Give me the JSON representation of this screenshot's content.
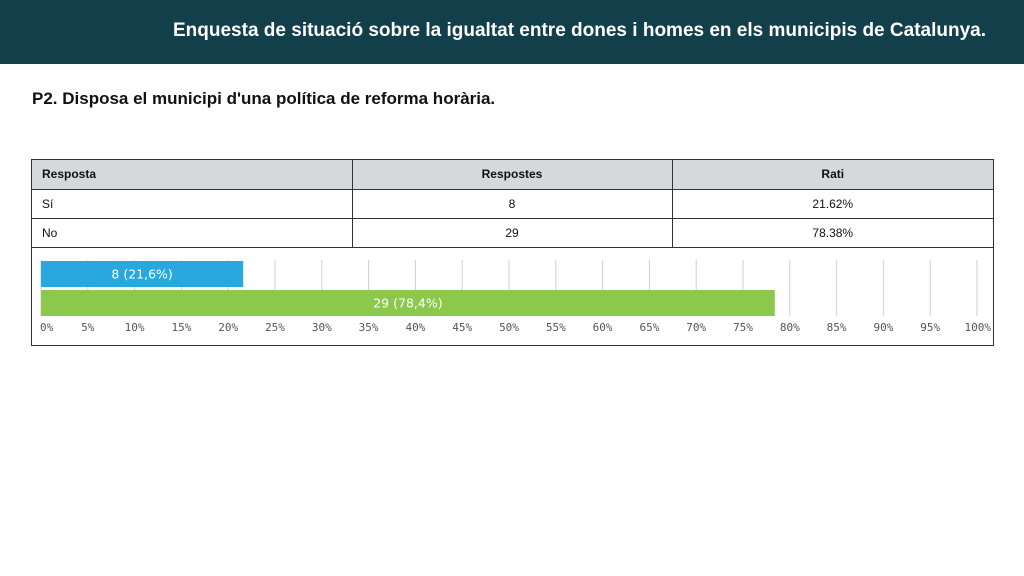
{
  "header": {
    "title": "Enquesta de situació sobre la  igualtat entre dones i homes en els municipis de Catalunya."
  },
  "question": "P2. Disposa el municipi d'una política de reforma horària.",
  "table": {
    "headers": [
      "Resposta",
      "Respostes",
      "Rati"
    ],
    "rows": [
      {
        "answer": "Sí",
        "count": "8",
        "ratio": "21.62%"
      },
      {
        "answer": "No",
        "count": "29",
        "ratio": "78.38%"
      }
    ]
  },
  "colors": {
    "banner": "#123f4a",
    "bar_si": "#29a8e0",
    "bar_no": "#8cc84b"
  },
  "chart_data": {
    "type": "bar",
    "orientation": "horizontal",
    "categories": [
      "Sí",
      "No"
    ],
    "values": [
      21.6,
      78.4
    ],
    "bar_labels": [
      "8 (21,6%)",
      "29 (78,4%)"
    ],
    "xlim": [
      0,
      100
    ],
    "x_ticks": [
      0,
      5,
      10,
      15,
      20,
      25,
      30,
      35,
      40,
      45,
      50,
      55,
      60,
      65,
      70,
      75,
      80,
      85,
      90,
      95,
      100
    ],
    "x_tick_labels": [
      "0%",
      "5%",
      "10%",
      "15%",
      "20%",
      "25%",
      "30%",
      "35%",
      "40%",
      "45%",
      "50%",
      "55%",
      "60%",
      "65%",
      "70%",
      "75%",
      "80%",
      "85%",
      "90%",
      "95%",
      "100%"
    ],
    "grid": true,
    "legend": "none",
    "title": "",
    "xlabel": "",
    "ylabel": ""
  }
}
